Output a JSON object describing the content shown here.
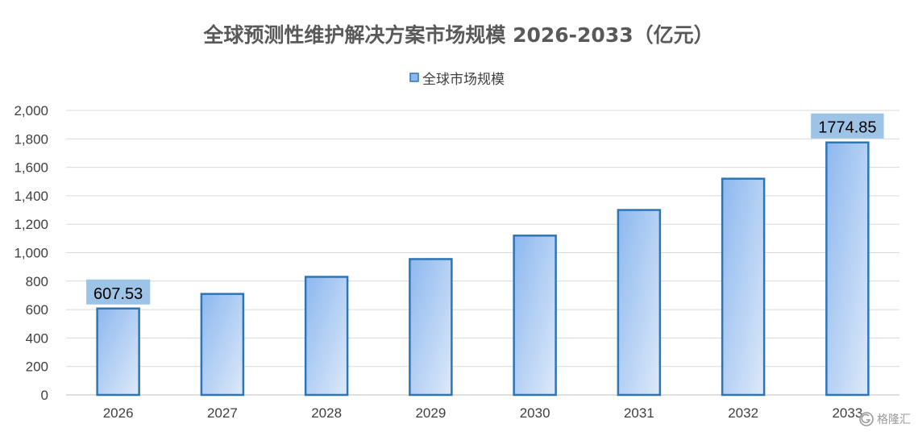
{
  "chart_data": {
    "type": "bar",
    "title": "全球预测性维护解决方案市场规模 2026-2033（亿元）",
    "xlabel": "",
    "ylabel": "",
    "categories": [
      "2026",
      "2027",
      "2028",
      "2029",
      "2030",
      "2031",
      "2032",
      "2033"
    ],
    "series": [
      {
        "name": "全球市场规模",
        "values": [
          607.53,
          710,
          830,
          955,
          1120,
          1300,
          1520,
          1774.85
        ]
      }
    ],
    "data_labels": [
      {
        "index": 0,
        "text": "607.53"
      },
      {
        "index": 7,
        "text": "1774.85"
      }
    ],
    "ylim": [
      0,
      2000
    ],
    "ytick_step": 200,
    "ytick_labels": [
      "0",
      "200",
      "400",
      "600",
      "800",
      "1,000",
      "1,200",
      "1,400",
      "1,600",
      "1,800",
      "2,000"
    ],
    "grid": true,
    "legend_position": "top-center",
    "colors": {
      "bar_top": "#8db8ef",
      "bar_bottom": "#dde9f9",
      "bar_border": "#2e75b6",
      "label_bg": "#9dc3e6",
      "grid": "#d9d9d9",
      "axis": "#bfbfbf"
    }
  },
  "watermark": {
    "text": "格隆汇",
    "icon": "g-logo-icon"
  }
}
